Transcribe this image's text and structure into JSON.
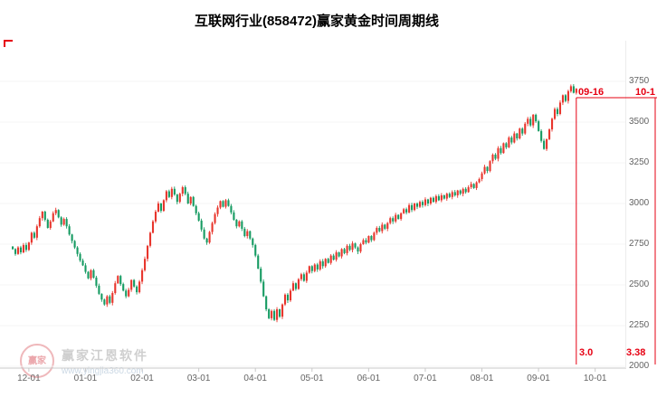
{
  "title": "互联网行业(858472)赢家黄金时间周期线",
  "watermark": {
    "brand": "赢家江恩软件",
    "url": "www.yingjia360.com",
    "seal_text": "赢家"
  },
  "annotations": {
    "event_date_label": "09-16",
    "event_value_label": "3.0",
    "right_date_label": "10-1",
    "right_value_label": "3.38",
    "line_color": "#e60012"
  },
  "chart_data": {
    "type": "candlestick",
    "title": "互联网行业(858472)赢家黄金时间周期线",
    "xlabel": "",
    "ylabel": "",
    "ylim": [
      2000,
      3750
    ],
    "grid": false,
    "legend_position": "none",
    "up_color": "#e8352c",
    "down_color": "#169b62",
    "y_ticks": [
      3750,
      3500,
      3250,
      3000,
      2750,
      2500,
      2250,
      2000
    ],
    "x_ticks": [
      {
        "label": "12-01",
        "i": 6
      },
      {
        "label": "01-01",
        "i": 27
      },
      {
        "label": "02-01",
        "i": 48
      },
      {
        "label": "03-01",
        "i": 69
      },
      {
        "label": "04-01",
        "i": 90
      },
      {
        "label": "05-01",
        "i": 111
      },
      {
        "label": "06-01",
        "i": 132
      },
      {
        "label": "07-01",
        "i": 153
      },
      {
        "label": "08-01",
        "i": 174
      },
      {
        "label": "09-01",
        "i": 195
      },
      {
        "label": "10-01",
        "i": 216
      }
    ],
    "closes": [
      2720,
      2690,
      2730,
      2700,
      2745,
      2715,
      2760,
      2820,
      2790,
      2860,
      2910,
      2950,
      2900,
      2850,
      2890,
      2940,
      2960,
      2915,
      2870,
      2905,
      2860,
      2810,
      2770,
      2730,
      2690,
      2650,
      2620,
      2580,
      2540,
      2590,
      2545,
      2495,
      2445,
      2410,
      2380,
      2430,
      2390,
      2450,
      2510,
      2555,
      2505,
      2465,
      2430,
      2470,
      2530,
      2490,
      2455,
      2520,
      2590,
      2660,
      2740,
      2820,
      2890,
      2950,
      3000,
      2955,
      3020,
      3075,
      3040,
      3090,
      3055,
      3010,
      3060,
      3100,
      3060,
      3000,
      3040,
      2985,
      2940,
      2895,
      2840,
      2785,
      2760,
      2825,
      2880,
      2935,
      2975,
      3015,
      2980,
      3020,
      2985,
      2945,
      2900,
      2860,
      2890,
      2845,
      2800,
      2830,
      2785,
      2745,
      2680,
      2600,
      2520,
      2430,
      2350,
      2295,
      2340,
      2285,
      2350,
      2305,
      2380,
      2440,
      2405,
      2465,
      2510,
      2475,
      2535,
      2565,
      2525,
      2575,
      2615,
      2585,
      2625,
      2595,
      2645,
      2615,
      2660,
      2635,
      2680,
      2655,
      2700,
      2675,
      2720,
      2695,
      2740,
      2715,
      2755,
      2730,
      2705,
      2750,
      2775,
      2760,
      2800,
      2775,
      2820,
      2850,
      2830,
      2870,
      2845,
      2880,
      2910,
      2890,
      2930,
      2905,
      2940,
      2965,
      2945,
      2990,
      2960,
      3000,
      2980,
      3010,
      2990,
      3025,
      3000,
      3035,
      3010,
      3045,
      3020,
      3050,
      3030,
      3060,
      3040,
      3070,
      3050,
      3080,
      3060,
      3090,
      3070,
      3100,
      3120,
      3095,
      3130,
      3150,
      3185,
      3225,
      3200,
      3260,
      3300,
      3275,
      3340,
      3310,
      3370,
      3345,
      3405,
      3375,
      3430,
      3400,
      3460,
      3430,
      3490,
      3520,
      3480,
      3545,
      3505,
      3445,
      3385,
      3335,
      3395,
      3455,
      3520,
      3580,
      3550,
      3620,
      3665,
      3630,
      3690,
      3720,
      3680,
      3705
    ],
    "event_line": {
      "index": 209,
      "price": 3650
    },
    "right_line": {
      "x": 724
    }
  }
}
